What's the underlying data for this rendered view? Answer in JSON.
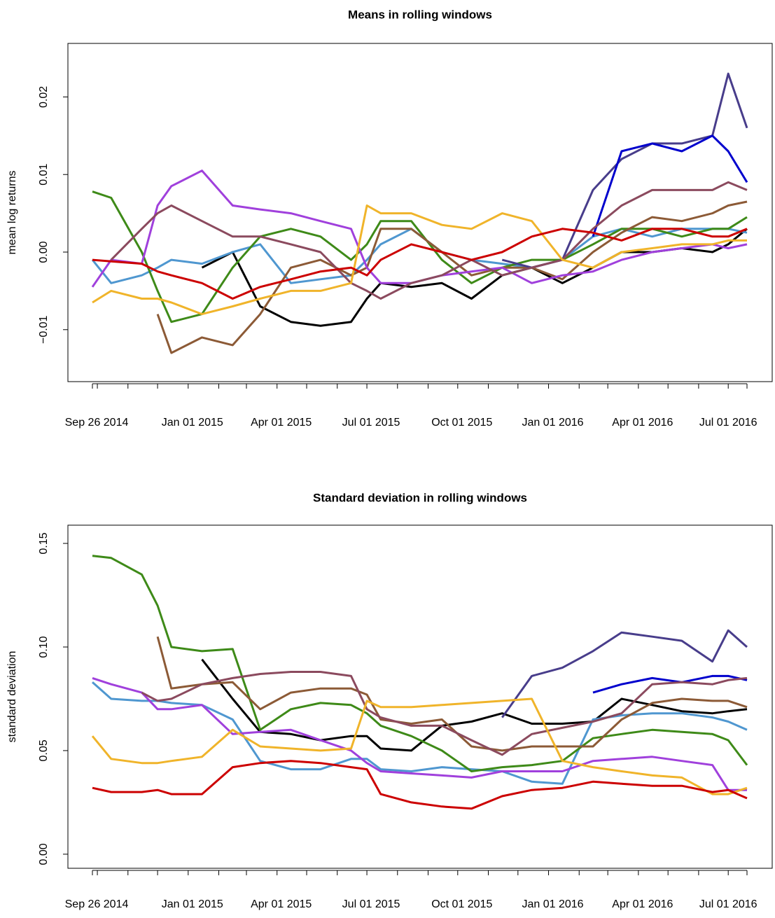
{
  "chart_data": [
    {
      "type": "line",
      "title": "Means in rolling windows",
      "ylabel": "mean log returns",
      "x": [
        "2014-09-26",
        "2014-10-15",
        "2014-11-15",
        "2014-12-01",
        "2014-12-15",
        "2015-01-15",
        "2015-02-15",
        "2015-03-15",
        "2015-04-15",
        "2015-05-15",
        "2015-06-15",
        "2015-07-01",
        "2015-07-15",
        "2015-08-15",
        "2015-09-15",
        "2015-10-15",
        "2015-11-15",
        "2015-12-15",
        "2016-01-15",
        "2016-02-15",
        "2016-03-15",
        "2016-04-15",
        "2016-05-15",
        "2016-06-15",
        "2016-07-01",
        "2016-07-20"
      ],
      "xlim": [
        "2014-09-26",
        "2016-07-20"
      ],
      "xticks": [
        {
          "value": "2014-09-26",
          "label": "Sep 26 2014"
        },
        {
          "value": "2015-01-01",
          "label": "Jan 01 2015"
        },
        {
          "value": "2015-04-01",
          "label": "Apr 01 2015"
        },
        {
          "value": "2015-07-01",
          "label": "Jul 01 2015"
        },
        {
          "value": "2015-10-01",
          "label": "Oct 01 2015"
        },
        {
          "value": "2016-01-01",
          "label": "Jan 01 2016"
        },
        {
          "value": "2016-04-01",
          "label": "Apr 01 2016"
        },
        {
          "value": "2016-07-01",
          "label": "Jul 01 2016"
        }
      ],
      "xminor_ticks": [
        "2014-10-01",
        "2014-11-01",
        "2014-12-01",
        "2015-02-01",
        "2015-03-01",
        "2015-05-01",
        "2015-06-01",
        "2015-08-01",
        "2015-09-01",
        "2015-11-01",
        "2015-12-01",
        "2016-02-01",
        "2016-03-01",
        "2016-05-01",
        "2016-06-01",
        "2016-07-20"
      ],
      "ylim": [
        -0.0167,
        0.0269
      ],
      "yticks": [
        {
          "value": -0.01,
          "label": "−0.01"
        },
        {
          "value": 0,
          "label": "0.00"
        },
        {
          "value": 0.01,
          "label": "0.01"
        },
        {
          "value": 0.02,
          "label": "0.02"
        }
      ],
      "series": [
        {
          "color": "#000000",
          "values": [
            null,
            null,
            null,
            null,
            null,
            -0.002,
            0.0,
            -0.007,
            -0.009,
            -0.0095,
            -0.009,
            -0.006,
            -0.004,
            -0.0045,
            -0.004,
            -0.006,
            -0.003,
            -0.002,
            -0.004,
            -0.002,
            0.0,
            0.0,
            0.0005,
            0.0,
            0.001,
            0.003
          ]
        },
        {
          "color": "#4f97d0",
          "values": [
            -0.001,
            -0.004,
            -0.003,
            -0.002,
            -0.001,
            -0.0015,
            0.0,
            0.001,
            -0.004,
            -0.0035,
            -0.003,
            -0.001,
            0.001,
            0.003,
            0.0,
            -0.001,
            -0.0015,
            -0.002,
            -0.001,
            0.002,
            0.003,
            0.002,
            0.003,
            0.003,
            0.003,
            0.0025
          ]
        },
        {
          "color": "#3e8a18",
          "values": [
            0.0078,
            0.007,
            0.0,
            -0.005,
            -0.009,
            -0.008,
            -0.002,
            0.002,
            0.003,
            0.002,
            -0.001,
            0.001,
            0.004,
            0.004,
            -0.001,
            -0.004,
            -0.002,
            -0.001,
            -0.001,
            0.001,
            0.003,
            0.003,
            0.002,
            0.003,
            0.003,
            0.0045
          ]
        },
        {
          "color": "#8c5a36",
          "values": [
            null,
            null,
            null,
            -0.008,
            -0.013,
            -0.011,
            -0.012,
            -0.008,
            -0.002,
            -0.001,
            -0.003,
            -0.002,
            0.003,
            0.003,
            0.0,
            -0.003,
            -0.002,
            -0.002,
            -0.0035,
            0.0,
            0.0025,
            0.0045,
            0.004,
            0.005,
            0.006,
            0.0065
          ]
        },
        {
          "color": "#a040dc",
          "values": [
            -0.0045,
            -0.001,
            -0.0015,
            0.006,
            0.0085,
            0.0105,
            0.006,
            0.0055,
            0.005,
            0.004,
            0.003,
            -0.002,
            -0.004,
            -0.004,
            -0.003,
            -0.0025,
            -0.002,
            -0.004,
            -0.003,
            -0.0025,
            -0.001,
            0.0,
            0.0005,
            0.001,
            0.0005,
            0.001
          ]
        },
        {
          "color": "#483d8b",
          "values": [
            null,
            null,
            null,
            null,
            null,
            null,
            null,
            null,
            null,
            null,
            null,
            null,
            null,
            null,
            null,
            null,
            -0.001,
            -0.002,
            -0.001,
            0.008,
            0.012,
            0.014,
            0.014,
            0.015,
            0.023,
            0.016
          ]
        },
        {
          "color": "#0000cd",
          "values": [
            null,
            null,
            null,
            null,
            null,
            null,
            null,
            null,
            null,
            null,
            null,
            null,
            null,
            null,
            null,
            null,
            null,
            null,
            null,
            0.002,
            0.013,
            0.014,
            0.013,
            0.015,
            0.013,
            0.009
          ]
        },
        {
          "color": "#8b4a5e",
          "values": [
            null,
            -0.001,
            0.003,
            0.005,
            0.006,
            0.004,
            0.002,
            0.002,
            0.001,
            0.0,
            -0.004,
            -0.005,
            -0.006,
            -0.004,
            -0.003,
            -0.001,
            -0.003,
            -0.002,
            -0.001,
            0.003,
            0.006,
            0.008,
            0.008,
            0.008,
            0.009,
            0.008
          ]
        },
        {
          "color": "#f0b42a",
          "values": [
            -0.0065,
            -0.005,
            -0.006,
            -0.006,
            -0.0065,
            -0.008,
            -0.007,
            -0.006,
            -0.005,
            -0.005,
            -0.004,
            0.006,
            0.005,
            0.005,
            0.0035,
            0.003,
            0.005,
            0.004,
            -0.001,
            -0.002,
            0.0,
            0.0005,
            0.001,
            0.001,
            0.0015,
            0.0015
          ]
        },
        {
          "color": "#cc0000",
          "values": [
            -0.001,
            -0.0012,
            -0.0015,
            -0.0025,
            -0.003,
            -0.004,
            -0.006,
            -0.0045,
            -0.0035,
            -0.0025,
            -0.002,
            -0.003,
            -0.001,
            0.001,
            0.0,
            -0.001,
            0.0,
            0.002,
            0.003,
            0.0025,
            0.0015,
            0.003,
            0.003,
            0.002,
            0.002,
            0.003
          ]
        }
      ]
    },
    {
      "type": "line",
      "title": "Standard deviation in rolling windows",
      "ylabel": "standard deviation",
      "x": [
        "2014-09-26",
        "2014-10-15",
        "2014-11-15",
        "2014-12-01",
        "2014-12-15",
        "2015-01-15",
        "2015-02-15",
        "2015-03-15",
        "2015-04-15",
        "2015-05-15",
        "2015-06-15",
        "2015-07-01",
        "2015-07-15",
        "2015-08-15",
        "2015-09-15",
        "2015-10-15",
        "2015-11-15",
        "2015-12-15",
        "2016-01-15",
        "2016-02-15",
        "2016-03-15",
        "2016-04-15",
        "2016-05-15",
        "2016-06-15",
        "2016-07-01",
        "2016-07-20"
      ],
      "xlim": [
        "2014-09-26",
        "2016-07-20"
      ],
      "xticks": [
        {
          "value": "2014-09-26",
          "label": "Sep 26 2014"
        },
        {
          "value": "2015-01-01",
          "label": "Jan 01 2015"
        },
        {
          "value": "2015-04-01",
          "label": "Apr 01 2015"
        },
        {
          "value": "2015-07-01",
          "label": "Jul 01 2015"
        },
        {
          "value": "2015-10-01",
          "label": "Oct 01 2015"
        },
        {
          "value": "2016-01-01",
          "label": "Jan 01 2016"
        },
        {
          "value": "2016-04-01",
          "label": "Apr 01 2016"
        },
        {
          "value": "2016-07-01",
          "label": "Jul 01 2016"
        }
      ],
      "xminor_ticks": [
        "2014-10-01",
        "2014-11-01",
        "2014-12-01",
        "2015-02-01",
        "2015-03-01",
        "2015-05-01",
        "2015-06-01",
        "2015-08-01",
        "2015-09-01",
        "2015-11-01",
        "2015-12-01",
        "2016-02-01",
        "2016-03-01",
        "2016-05-01",
        "2016-06-01",
        "2016-07-20"
      ],
      "ylim": [
        -0.0068,
        0.1588
      ],
      "yticks": [
        {
          "value": 0,
          "label": "0.00"
        },
        {
          "value": 0.05,
          "label": "0.05"
        },
        {
          "value": 0.1,
          "label": "0.10"
        },
        {
          "value": 0.15,
          "label": "0.15"
        }
      ],
      "series": [
        {
          "color": "#000000",
          "values": [
            null,
            null,
            null,
            null,
            null,
            0.094,
            0.075,
            0.059,
            0.058,
            0.055,
            0.057,
            0.057,
            0.051,
            0.05,
            0.062,
            0.064,
            0.068,
            0.063,
            0.063,
            0.064,
            0.075,
            0.072,
            0.069,
            0.068,
            0.069,
            0.07
          ]
        },
        {
          "color": "#4f97d0",
          "values": [
            0.083,
            0.075,
            0.074,
            0.074,
            0.073,
            0.072,
            0.065,
            0.045,
            0.041,
            0.041,
            0.046,
            0.046,
            0.041,
            0.04,
            0.042,
            0.041,
            0.04,
            0.035,
            0.034,
            0.065,
            0.067,
            0.068,
            0.068,
            0.066,
            0.064,
            0.06
          ]
        },
        {
          "color": "#3e8a18",
          "values": [
            0.144,
            0.143,
            0.135,
            0.12,
            0.1,
            0.098,
            0.099,
            0.06,
            0.07,
            0.073,
            0.072,
            0.068,
            0.062,
            0.057,
            0.05,
            0.04,
            0.042,
            0.043,
            0.045,
            0.056,
            0.058,
            0.06,
            0.059,
            0.058,
            0.055,
            0.043
          ]
        },
        {
          "color": "#8c5a36",
          "values": [
            null,
            null,
            null,
            0.105,
            0.08,
            0.082,
            0.083,
            0.07,
            0.078,
            0.08,
            0.08,
            0.077,
            0.065,
            0.063,
            0.065,
            0.052,
            0.05,
            0.052,
            0.052,
            0.052,
            0.065,
            0.073,
            0.075,
            0.074,
            0.074,
            0.071
          ]
        },
        {
          "color": "#a040dc",
          "values": [
            0.085,
            0.082,
            0.078,
            0.07,
            0.07,
            0.072,
            0.058,
            0.059,
            0.06,
            0.055,
            0.05,
            0.044,
            0.04,
            0.039,
            0.038,
            0.037,
            0.04,
            0.04,
            0.04,
            0.045,
            0.046,
            0.047,
            0.045,
            0.043,
            0.031,
            0.031
          ]
        },
        {
          "color": "#483d8b",
          "values": [
            null,
            null,
            null,
            null,
            null,
            null,
            null,
            null,
            null,
            null,
            null,
            null,
            null,
            null,
            null,
            null,
            0.066,
            0.086,
            0.09,
            0.098,
            0.107,
            0.105,
            0.103,
            0.093,
            0.108,
            0.1
          ]
        },
        {
          "color": "#0000cd",
          "values": [
            null,
            null,
            null,
            null,
            null,
            null,
            null,
            null,
            null,
            null,
            null,
            null,
            null,
            null,
            null,
            null,
            null,
            null,
            null,
            0.078,
            0.082,
            0.085,
            0.083,
            0.086,
            0.086,
            0.084
          ]
        },
        {
          "color": "#8b4a5e",
          "values": [
            null,
            null,
            0.078,
            0.074,
            0.075,
            0.082,
            0.085,
            0.087,
            0.088,
            0.088,
            0.086,
            0.07,
            0.066,
            0.062,
            0.062,
            0.055,
            0.048,
            0.058,
            0.061,
            0.064,
            0.068,
            0.082,
            0.083,
            0.082,
            0.084,
            0.085
          ]
        },
        {
          "color": "#f0b42a",
          "values": [
            0.057,
            0.046,
            0.044,
            0.044,
            0.045,
            0.047,
            0.06,
            0.052,
            0.051,
            0.05,
            0.051,
            0.074,
            0.071,
            0.071,
            0.072,
            0.073,
            0.074,
            0.075,
            0.045,
            0.042,
            0.04,
            0.038,
            0.037,
            0.029,
            0.029,
            0.032
          ]
        },
        {
          "color": "#cc0000",
          "values": [
            0.032,
            0.03,
            0.03,
            0.031,
            0.029,
            0.029,
            0.042,
            0.044,
            0.045,
            0.044,
            0.042,
            0.041,
            0.029,
            0.025,
            0.023,
            0.022,
            0.028,
            0.031,
            0.032,
            0.035,
            0.034,
            0.033,
            0.033,
            0.03,
            0.031,
            0.027
          ]
        }
      ]
    }
  ]
}
